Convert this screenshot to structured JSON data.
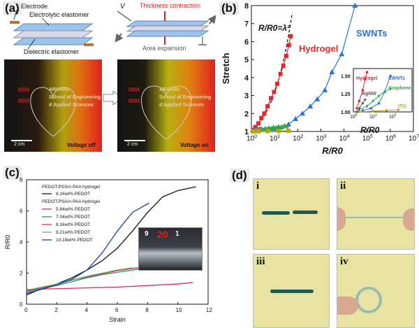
{
  "panel_a": {
    "label": "(a)",
    "schematic": {
      "electrode": "Electrode",
      "electrolytic": "Electrolytic elastomer",
      "dielectric": "Dielectric elastomer",
      "voltage_symbol": "V",
      "thickness": "Thickness contraction",
      "area": "Area expansion"
    },
    "photos": [
      {
        "caption": "Voltage off",
        "scale": "2 cm",
        "text_lines": [
          "ARVARD",
          "School of Engineering",
          "d Applied Sciences"
        ]
      },
      {
        "caption": "Voltage on",
        "scale": "2 cm",
        "text_lines": [
          "ARVARD",
          "School of Engineering",
          "d Applied Sciences"
        ]
      }
    ],
    "colors": {
      "red": "#e02020",
      "yellow": "#f0e000",
      "dark": "#1a1a1a"
    }
  },
  "panel_b": {
    "label": "(b)",
    "chart_data": {
      "type": "scatter",
      "xlabel": "R/R0",
      "ylabel": "Stretch",
      "xscale": "log",
      "xlim": [
        1,
        10000000
      ],
      "ylim": [
        1,
        8
      ],
      "x_ticks": [
        "10^0",
        "10^1",
        "10^2",
        "10^3",
        "10^4",
        "10^5",
        "10^6",
        "10^7"
      ],
      "y_ticks": [
        "1",
        "2",
        "3",
        "4",
        "5",
        "6",
        "7",
        "8"
      ],
      "formula": "R/R0=λ²",
      "series": [
        {
          "name": "Hydrogel",
          "color": "#e8262a",
          "marker": "square",
          "x": [
            1.2,
            1.5,
            2.0,
            2.7,
            3.6,
            5.0,
            7.0,
            9.5,
            13,
            18,
            24,
            32,
            42,
            50
          ],
          "y": [
            1.1,
            1.25,
            1.45,
            1.75,
            2.0,
            2.4,
            2.85,
            3.2,
            3.65,
            4.2,
            4.65,
            5.2,
            5.8,
            6.3
          ]
        },
        {
          "name": "SWNTs",
          "color": "#2a6fd8",
          "marker": "triangle",
          "x": [
            2,
            4,
            9,
            20,
            40,
            80,
            160,
            350,
            700,
            1500,
            3000,
            8000,
            30000
          ],
          "y": [
            1.05,
            1.1,
            1.15,
            1.25,
            1.4,
            1.7,
            2.0,
            2.4,
            2.8,
            3.3,
            4.3,
            5.3,
            8.0
          ]
        },
        {
          "name": "Graphene",
          "color": "#2fa84a",
          "marker": "diamond",
          "x": [
            1.2,
            1.6,
            2.2,
            3,
            4,
            5.5,
            7,
            9,
            12,
            15,
            20,
            27,
            35
          ],
          "y": [
            1.05,
            1.08,
            1.12,
            1.1,
            1.15,
            1.18,
            1.15,
            1.22,
            1.2,
            1.25,
            1.22,
            1.3,
            1.28
          ]
        },
        {
          "name": "AgNW",
          "color": "#7e7e7e",
          "marker": "circle",
          "x": [
            1.1,
            1.3,
            1.6,
            2,
            2.5
          ],
          "y": [
            1.0,
            1.05,
            1.08,
            1.12,
            1.15
          ]
        },
        {
          "name": "ITO",
          "color": "#b8a800",
          "marker": "square",
          "x": [
            1.2,
            2,
            5,
            15,
            40
          ],
          "y": [
            1.0,
            1.01,
            1.02,
            1.03,
            1.04
          ]
        }
      ],
      "inset": {
        "xlabel": "R/R0",
        "y_ticks": [
          "1.00",
          "1.25",
          "1.50"
        ],
        "x_ticks": [
          "10^0",
          "10^1",
          "10^2"
        ],
        "labels": [
          "Hydrogel",
          "SWNTs",
          "Graphene",
          "AgNW",
          "ITO"
        ]
      }
    }
  },
  "panel_c": {
    "label": "(c)",
    "chart_data": {
      "type": "line",
      "xlabel": "Strain",
      "ylabel": "R/R0",
      "xlim": [
        0,
        12
      ],
      "ylim": [
        0,
        8
      ],
      "x_ticks": [
        "0",
        "2",
        "4",
        "6",
        "8",
        "10",
        "12"
      ],
      "y_ticks": [
        "0",
        "2",
        "4",
        "6",
        "8"
      ],
      "legend_groups": [
        "PEDOT:PSS/n-PAA hydrogel",
        "PEDOT:PSA/n-PAA hydrogel"
      ],
      "series": [
        {
          "name": "8.16wt% PEDOT",
          "group": 0,
          "color": "#111111",
          "x": [
            0,
            1,
            2,
            3,
            4,
            5,
            6,
            7,
            8,
            9,
            10,
            11.2
          ],
          "y": [
            0.6,
            1.0,
            1.3,
            1.7,
            2.2,
            2.8,
            3.6,
            4.7,
            5.9,
            6.9,
            7.3,
            7.55
          ]
        },
        {
          "name": "5.84wt% PEDOT",
          "group": 1,
          "color": "#e02a5a",
          "x": [
            0,
            2,
            4,
            6,
            8,
            10,
            11
          ],
          "y": [
            0.95,
            1.0,
            1.05,
            1.1,
            1.2,
            1.3,
            1.4
          ]
        },
        {
          "name": "7.04wt% PEDOT",
          "group": 1,
          "color": "#1e8f8a",
          "x": [
            0,
            1,
            2,
            3,
            4,
            5,
            6,
            7,
            8,
            9
          ],
          "y": [
            0.8,
            1.0,
            1.2,
            1.45,
            1.7,
            1.9,
            2.05,
            2.2,
            2.35,
            2.45
          ]
        },
        {
          "name": "8.16wt% PEDOT",
          "group": 1,
          "color": "#d8306a",
          "x": [
            0,
            1,
            2,
            3,
            4,
            5,
            6,
            7,
            8
          ],
          "y": [
            0.85,
            1.05,
            1.3,
            1.55,
            1.75,
            1.95,
            2.15,
            2.3,
            2.4
          ]
        },
        {
          "name": "9.21wt% PEDOT",
          "group": 1,
          "color": "#6bb84a",
          "x": [
            0,
            1,
            2,
            3,
            4,
            5,
            6,
            7
          ],
          "y": [
            0.9,
            1.1,
            1.3,
            1.55,
            1.8,
            2.0,
            2.2,
            2.35
          ]
        },
        {
          "name": "10.19wt% PEDOT",
          "group": 1,
          "color": "#1d3f9a",
          "x": [
            0,
            1,
            2,
            3,
            4,
            5,
            6,
            7,
            8.1
          ],
          "y": [
            0.7,
            0.95,
            1.25,
            1.6,
            2.2,
            3.3,
            4.7,
            5.9,
            6.5
          ]
        }
      ],
      "inset_ruler": [
        "9",
        "20",
        "1"
      ]
    }
  },
  "panel_d": {
    "label": "(d)",
    "subpanels": [
      "i",
      "ii",
      "iii",
      "iv"
    ],
    "colors": {
      "background": "#e9e3a3",
      "fiber": "#1d5a4e"
    }
  }
}
